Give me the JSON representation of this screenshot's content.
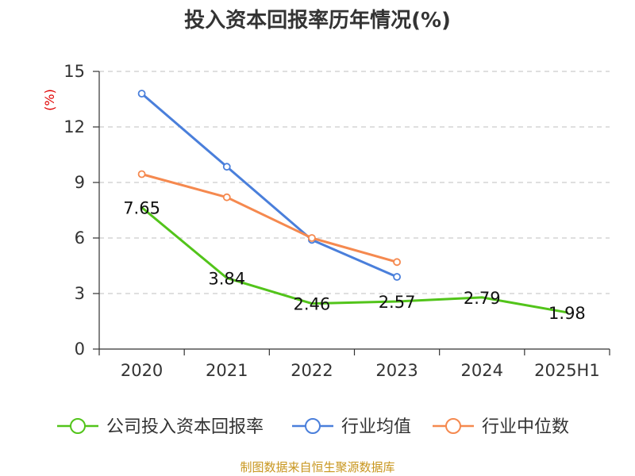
{
  "chart_data": {
    "type": "line",
    "title": "投入资本回报率历年情况(%)",
    "unit": "(%)",
    "categories": [
      "2020",
      "2021",
      "2022",
      "2023",
      "2024",
      "2025H1"
    ],
    "ylim": [
      0,
      15
    ],
    "yticks": [
      "0",
      "3",
      "6",
      "9",
      "12",
      "15"
    ],
    "grid": true,
    "legend_position": "bottom",
    "series": [
      {
        "name": "公司投入资本回报率",
        "color": "#52c41a",
        "values": [
          7.65,
          3.84,
          2.46,
          2.57,
          2.79,
          1.98
        ],
        "labels": [
          "7.65",
          "3.84",
          "2.46",
          "2.57",
          "2.79",
          "1.98"
        ],
        "show_markers": false
      },
      {
        "name": "行业均值",
        "color": "#4a7fdb",
        "values": [
          13.8,
          9.85,
          5.9,
          3.9,
          null,
          null
        ],
        "show_markers": true
      },
      {
        "name": "行业中位数",
        "color": "#f5894f",
        "values": [
          9.45,
          8.2,
          6.0,
          4.7,
          null,
          null
        ],
        "show_markers": true
      }
    ],
    "source": "制图数据来自恒生聚源数据库"
  }
}
